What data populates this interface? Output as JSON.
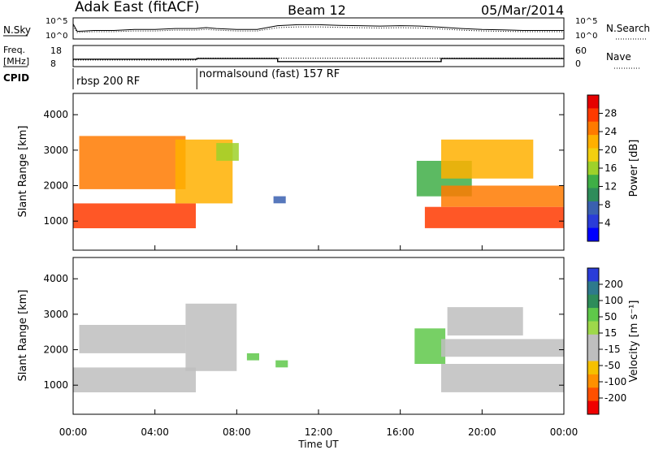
{
  "header": {
    "title": "Adak East (fitACF)",
    "beam": "Beam 12",
    "date": "05/Mar/2014"
  },
  "noise_panel": {
    "left_label": "N.Sky",
    "right_label": "N.Search",
    "left_ticks": [
      "10^5",
      "10^0"
    ],
    "right_ticks": [
      "10^5",
      "10^0"
    ]
  },
  "freq_panel": {
    "left_label_1": "Freq.",
    "left_label_2": "[MHz]",
    "right_label": "Nave",
    "left_ticks": [
      "18",
      "8"
    ],
    "right_ticks": [
      "60",
      "0"
    ]
  },
  "cpid_panel": {
    "label": "CPID",
    "modes": [
      {
        "name": "rbsp 200 RF",
        "start_hour": 0,
        "end_hour": 6.05
      },
      {
        "name": "normalsound (fast) 157 RF",
        "start_hour": 6.05,
        "end_hour": 24
      }
    ]
  },
  "axes": {
    "xlabel": "Time UT",
    "x_ticks": [
      "00:00",
      "04:00",
      "08:00",
      "12:00",
      "16:00",
      "20:00",
      "00:00"
    ],
    "x_range_hours": [
      0,
      24
    ],
    "ylabel": "Slant Range [km]",
    "y_ticks": [
      "1000",
      "2000",
      "3000",
      "4000"
    ],
    "y_range_km": [
      180,
      4600
    ]
  },
  "colorbars": {
    "power": {
      "label": "Power [dB]",
      "ticks": [
        "28",
        "24",
        "20",
        "16",
        "12",
        "8",
        "4"
      ],
      "colors": [
        "#e60000",
        "#ff3a00",
        "#ff7a00",
        "#ffb000",
        "#f2cf10",
        "#9ed12a",
        "#3fae46",
        "#2e8c5a",
        "#3a60b0",
        "#2a3cd8",
        "#0000ff"
      ]
    },
    "velocity": {
      "label": "Velocity [m s⁻¹]",
      "ticks": [
        "200",
        "100",
        "50",
        "15",
        "-15",
        "-50",
        "-100",
        "-200"
      ],
      "colors": [
        "#2a3cd8",
        "#2e7a8c",
        "#2e8c5a",
        "#5fc84a",
        "#9ed84a",
        "#bebebe",
        "#bebebe",
        "#f5c000",
        "#ff9000",
        "#ff5000",
        "#f00000"
      ]
    }
  },
  "chart_data": [
    {
      "type": "line",
      "title": "",
      "series": [
        {
          "name": "N.Sky",
          "x": [
            0,
            0.2,
            1,
            2,
            3,
            4,
            5,
            6,
            6.5,
            7,
            8,
            9,
            10,
            11,
            12,
            13,
            14,
            15,
            16,
            17,
            18,
            19,
            20,
            21,
            22,
            23,
            24
          ],
          "y": [
            0.8,
            0.4,
            0.45,
            0.45,
            0.5,
            0.5,
            0.55,
            0.55,
            0.6,
            0.55,
            0.5,
            0.5,
            0.7,
            0.75,
            0.75,
            0.72,
            0.7,
            0.68,
            0.7,
            0.68,
            0.62,
            0.55,
            0.5,
            0.48,
            0.45,
            0.45,
            0.45
          ]
        }
      ]
    },
    {
      "type": "line",
      "title": "",
      "series": [
        {
          "name": "Freq.",
          "x": [
            0,
            6.05,
            6.05,
            10,
            10,
            18,
            18,
            24
          ],
          "y": [
            11.5,
            11.5,
            11.8,
            11.8,
            10.4,
            10.4,
            11.8,
            11.8
          ]
        },
        {
          "name": "Nave",
          "x": [
            0,
            6.05,
            6.05,
            24
          ],
          "y": [
            19,
            19,
            24,
            24
          ]
        }
      ]
    },
    {
      "type": "heatmap",
      "title": "",
      "quantity": "Power [dB]",
      "xlabel": "Time UT",
      "ylabel": "Slant Range [km]",
      "xlim": [
        0,
        24
      ],
      "ylim": [
        180,
        4600
      ],
      "regions": [
        {
          "t0": 0.0,
          "t1": 6.0,
          "r0": 800,
          "r1": 1500,
          "value": 26
        },
        {
          "t0": 0.3,
          "t1": 5.5,
          "r0": 1900,
          "r1": 3400,
          "value": 24
        },
        {
          "t0": 5.0,
          "t1": 7.8,
          "r0": 1500,
          "r1": 3300,
          "value": 22
        },
        {
          "t0": 7.0,
          "t1": 8.1,
          "r0": 2700,
          "r1": 3200,
          "value": 14
        },
        {
          "t0": 9.8,
          "t1": 10.4,
          "r0": 1500,
          "r1": 1700,
          "value": 6
        },
        {
          "t0": 16.8,
          "t1": 19.5,
          "r0": 1700,
          "r1": 2700,
          "value": 12
        },
        {
          "t0": 17.2,
          "t1": 24.0,
          "r0": 800,
          "r1": 1400,
          "value": 26
        },
        {
          "t0": 18.0,
          "t1": 24.0,
          "r0": 1400,
          "r1": 2000,
          "value": 24
        },
        {
          "t0": 18.0,
          "t1": 22.5,
          "r0": 2200,
          "r1": 3300,
          "value": 20
        }
      ]
    },
    {
      "type": "heatmap",
      "title": "",
      "quantity": "Velocity [m s⁻¹]",
      "xlabel": "Time UT",
      "ylabel": "Slant Range [km]",
      "xlim": [
        0,
        24
      ],
      "ylim": [
        180,
        4600
      ],
      "regions": [
        {
          "t0": 0.0,
          "t1": 6.0,
          "r0": 800,
          "r1": 1500,
          "value": 0
        },
        {
          "t0": 0.3,
          "t1": 5.5,
          "r0": 1900,
          "r1": 2700,
          "value": 0
        },
        {
          "t0": 5.5,
          "t1": 8.0,
          "r0": 1400,
          "r1": 3300,
          "value": 0
        },
        {
          "t0": 8.5,
          "t1": 9.1,
          "r0": 1700,
          "r1": 1900,
          "value": 30
        },
        {
          "t0": 9.9,
          "t1": 10.5,
          "r0": 1500,
          "r1": 1700,
          "value": 30
        },
        {
          "t0": 16.7,
          "t1": 18.2,
          "r0": 1600,
          "r1": 2600,
          "value": 30
        },
        {
          "t0": 18.0,
          "t1": 24.0,
          "r0": 800,
          "r1": 1600,
          "value": 0
        },
        {
          "t0": 18.0,
          "t1": 24.0,
          "r0": 1800,
          "r1": 2300,
          "value": 0
        },
        {
          "t0": 18.3,
          "t1": 22.0,
          "r0": 2400,
          "r1": 3200,
          "value": 0
        }
      ]
    }
  ]
}
